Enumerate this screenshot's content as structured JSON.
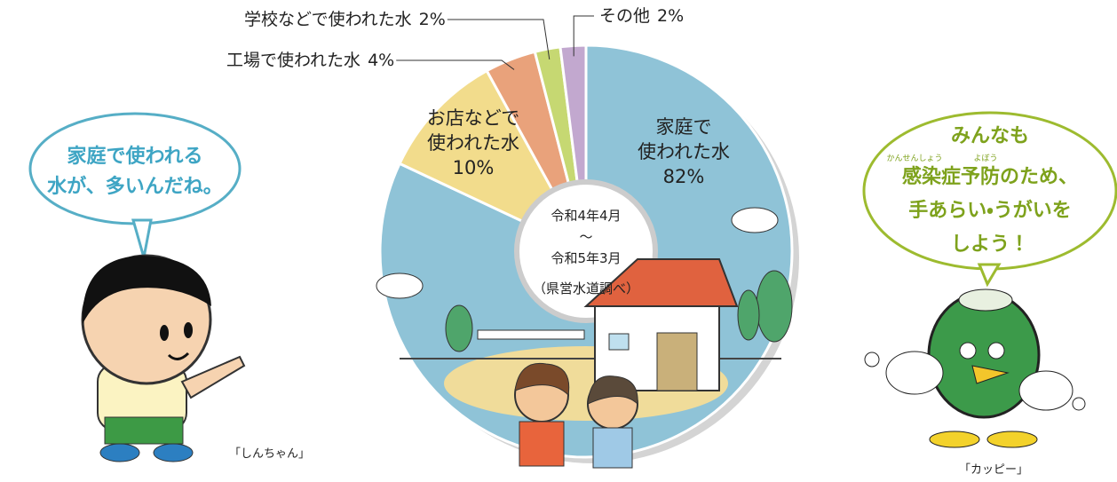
{
  "chart_data": {
    "type": "pie",
    "donut": true,
    "categories": [
      [
        "家庭で",
        "使われた水"
      ],
      [
        "お店などで",
        "使われた水"
      ],
      [
        "工場で使われた水"
      ],
      [
        "学校などで使われた水"
      ],
      [
        "その他"
      ]
    ],
    "values": [
      82,
      10,
      4,
      2,
      2
    ],
    "value_labels": [
      "82%",
      "10%",
      "4%",
      "2%",
      "2%"
    ],
    "colors": [
      "#8fc3d7",
      "#f2dc8c",
      "#e9a27b",
      "#c6d872",
      "#c2a8cf"
    ],
    "center_text": [
      "令和4年4月",
      "〜",
      "令和5年3月",
      "（県営水道調べ）"
    ]
  },
  "left_character": {
    "bubble": [
      "家庭で使われる",
      "水が、多いんだね。"
    ],
    "caption": "「しんちゃん」"
  },
  "right_character": {
    "bubble": [
      "みんなも",
      "感染症予防のため、",
      "手あらい・うがいを",
      "しよう！"
    ],
    "ruby": [
      "かんせんしょう",
      "よぼう"
    ],
    "caption": "「カッピー」"
  }
}
